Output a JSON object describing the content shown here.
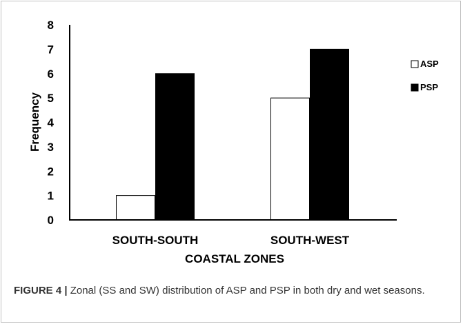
{
  "chart_data": {
    "type": "bar",
    "categories": [
      "SOUTH-SOUTH",
      "SOUTH-WEST"
    ],
    "series": [
      {
        "name": "ASP",
        "values": [
          1,
          5
        ],
        "color": "#ffffff"
      },
      {
        "name": "PSP",
        "values": [
          6,
          7
        ],
        "color": "#000000"
      }
    ],
    "xlabel": "COASTAL ZONES",
    "ylabel": "Frequency",
    "ylim": [
      0,
      8
    ],
    "yticks": [
      0,
      1,
      2,
      3,
      4,
      5,
      6,
      7,
      8
    ],
    "grid": false,
    "legend": {
      "position": "right",
      "markers": [
        "□",
        "■"
      ]
    }
  },
  "caption": {
    "lead": "FIGURE 4 |",
    "text": " Zonal (SS and SW) distribution of ASP and PSP in both dry and wet seasons."
  }
}
